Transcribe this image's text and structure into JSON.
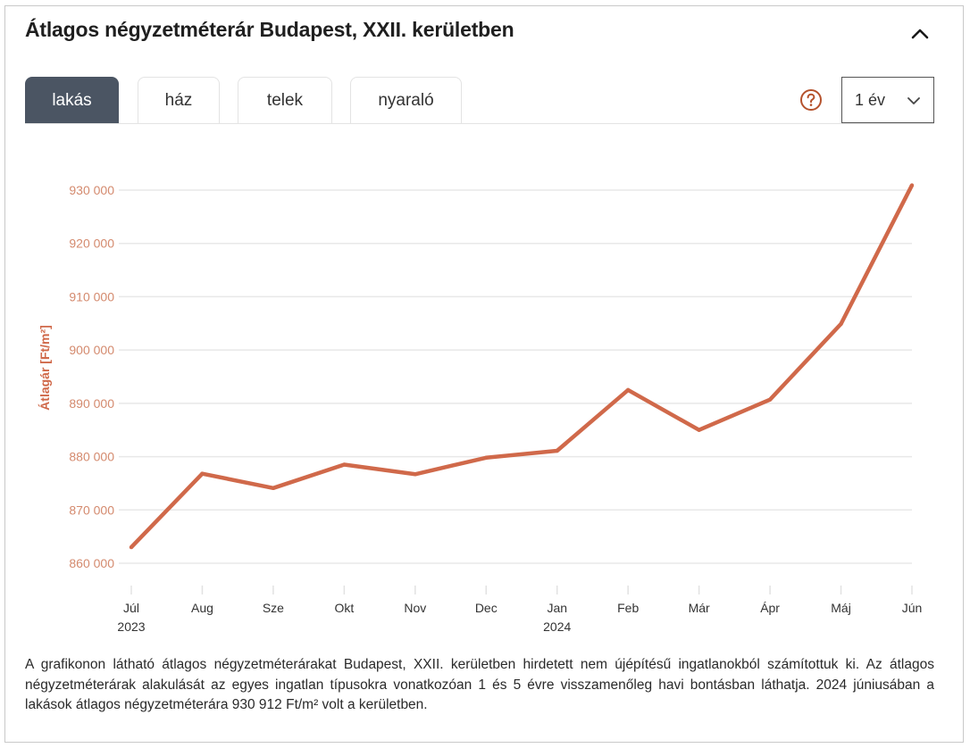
{
  "header": {
    "title": "Átlagos négyzetméterár Budapest, XXII. kerületben",
    "collapse_icon": "chevron-up-icon"
  },
  "tabs": [
    {
      "label": "lakás",
      "active": true
    },
    {
      "label": "ház",
      "active": false
    },
    {
      "label": "telek",
      "active": false
    },
    {
      "label": "nyaraló",
      "active": false
    }
  ],
  "controls": {
    "help_icon": "question-circle-icon",
    "period_select": {
      "value": "1 év",
      "icon": "chevron-down-icon"
    }
  },
  "colors": {
    "accent": "#d0694a",
    "tick_label": "#d48a6e",
    "active_tab": "#4b5563",
    "help": "#b5522c",
    "grid": "#e8e8e8"
  },
  "chart_data": {
    "type": "line",
    "title": "",
    "xlabel": "",
    "ylabel": "Átlagár [Ft/m²]",
    "categories": [
      "Júl",
      "Aug",
      "Sze",
      "Okt",
      "Nov",
      "Dec",
      "Jan",
      "Feb",
      "Már",
      "Ápr",
      "Máj",
      "Jún"
    ],
    "category_sublabels": [
      "2023",
      "",
      "",
      "",
      "",
      "",
      "2024",
      "",
      "",
      "",
      "",
      ""
    ],
    "series": [
      {
        "name": "lakás",
        "values": [
          863000,
          876800,
          874100,
          878500,
          876700,
          879800,
          881100,
          892500,
          885000,
          890700,
          904900,
          930912
        ]
      }
    ],
    "ylim": [
      860000,
      930000
    ],
    "yticks": [
      860000,
      870000,
      880000,
      890000,
      900000,
      910000,
      920000,
      930000
    ],
    "ytick_labels": [
      "860 000",
      "870 000",
      "880 000",
      "890 000",
      "900 000",
      "910 000",
      "920 000",
      "930 000"
    ],
    "grid": true,
    "legend": "none"
  },
  "description": "A grafikonon látható átlagos négyzetméterárakat Budapest, XXII. kerületben hirdetett nem újépítésű ingatlanokból számítottuk ki. Az átlagos négyzetméterárak alakulását az egyes ingatlan típusokra vonatkozóan 1 és 5 évre visszamenőleg havi bontásban láthatja. 2024 júniusában a lakások átlagos négyzetméterára 930 912 Ft/m² volt a kerületben."
}
